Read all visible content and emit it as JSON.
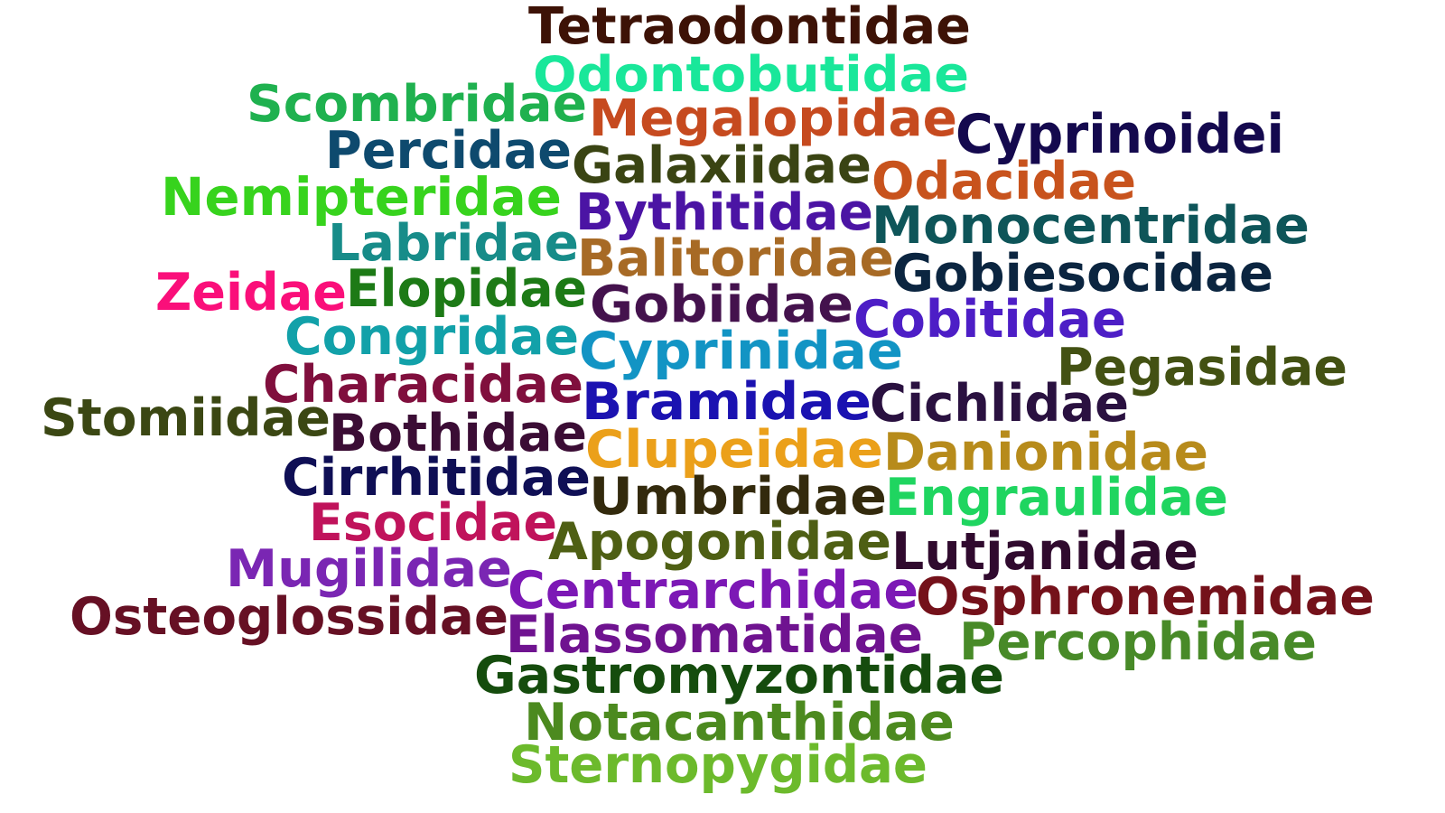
{
  "word_cloud": {
    "words": [
      {
        "text": "Tetraodontidae",
        "color": "#3d1206"
      },
      {
        "text": "Odontobutidae",
        "color": "#19e79a"
      },
      {
        "text": "Scombridae",
        "color": "#1fb14f"
      },
      {
        "text": "Megalopidae",
        "color": "#c64a1f"
      },
      {
        "text": "Cyprinoidei",
        "color": "#14094e"
      },
      {
        "text": "Percidae",
        "color": "#0e4a6e"
      },
      {
        "text": "Galaxiidae",
        "color": "#3a4413"
      },
      {
        "text": "Odacidae",
        "color": "#c8531d"
      },
      {
        "text": "Nemipteridae",
        "color": "#37d31d"
      },
      {
        "text": "Bythitidae",
        "color": "#4b14a4"
      },
      {
        "text": "Monocentridae",
        "color": "#0e5559"
      },
      {
        "text": "Labridae",
        "color": "#178c89"
      },
      {
        "text": "Balitoridae",
        "color": "#a76a25"
      },
      {
        "text": "Gobiesocidae",
        "color": "#0b2540"
      },
      {
        "text": "Zeidae",
        "color": "#fa0f7a"
      },
      {
        "text": "Elopidae",
        "color": "#1d7a16"
      },
      {
        "text": "Gobiidae",
        "color": "#44124d"
      },
      {
        "text": "Cobitidae",
        "color": "#4d1ec6"
      },
      {
        "text": "Congridae",
        "color": "#12a1a9"
      },
      {
        "text": "Cyprinidae",
        "color": "#1294c4"
      },
      {
        "text": "Characidae",
        "color": "#800f3d"
      },
      {
        "text": "Pegasidae",
        "color": "#435113"
      },
      {
        "text": "Stomiidae",
        "color": "#3b4713"
      },
      {
        "text": "Bramidae",
        "color": "#1b12b1"
      },
      {
        "text": "Cichlidae",
        "color": "#2a1140"
      },
      {
        "text": "Bothidae",
        "color": "#3b0d35"
      },
      {
        "text": "Clupeidae",
        "color": "#eba01a"
      },
      {
        "text": "Danionidae",
        "color": "#b78b1b"
      },
      {
        "text": "Cirrhitidae",
        "color": "#0f0f55"
      },
      {
        "text": "Umbridae",
        "color": "#332a0d"
      },
      {
        "text": "Engraulidae",
        "color": "#1fd560"
      },
      {
        "text": "Esocidae",
        "color": "#c0135b"
      },
      {
        "text": "Apogonidae",
        "color": "#4e5f14"
      },
      {
        "text": "Lutjanidae",
        "color": "#300a2e"
      },
      {
        "text": "Mugilidae",
        "color": "#7a26b3"
      },
      {
        "text": "Centrarchidae",
        "color": "#7c18b5"
      },
      {
        "text": "Osphronemidae",
        "color": "#74111a"
      },
      {
        "text": "Osteoglossidae",
        "color": "#661024"
      },
      {
        "text": "Elassomatidae",
        "color": "#6f1390"
      },
      {
        "text": "Percophidae",
        "color": "#488a28"
      },
      {
        "text": "Gastromyzontidae",
        "color": "#154c0d"
      },
      {
        "text": "Notacanthidae",
        "color": "#4c8a1f"
      },
      {
        "text": "Sternopygidae",
        "color": "#6cba2c"
      }
    ]
  }
}
